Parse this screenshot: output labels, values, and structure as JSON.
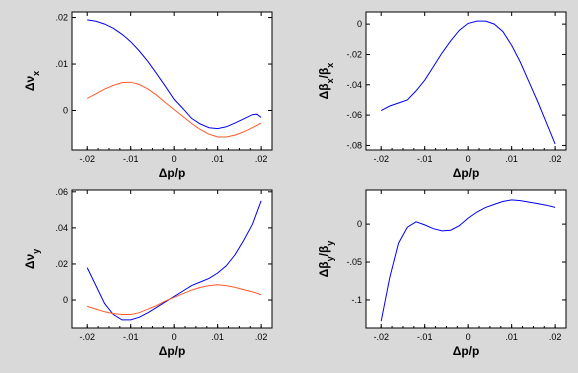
{
  "chart_data": [
    {
      "id": "tl",
      "type": "line",
      "xlabel": "Δp/p",
      "ylabel": "Δν_x",
      "xlim": [
        -0.0235,
        0.0225
      ],
      "ylim": [
        -0.0085,
        0.0212
      ],
      "xticks": [
        -0.02,
        -0.01,
        0,
        0.01,
        0.02
      ],
      "xtick_labels": [
        "-.02",
        "-.01",
        "0",
        ".01",
        ".02"
      ],
      "yticks": [
        0,
        0.01,
        0.02
      ],
      "ytick_labels": [
        "0",
        ".01",
        ".02"
      ],
      "series": [
        {
          "color": "#0000ee",
          "x": [
            -0.02,
            -0.018,
            -0.016,
            -0.014,
            -0.012,
            -0.01,
            -0.008,
            -0.006,
            -0.004,
            -0.002,
            0,
            0.002,
            0.004,
            0.006,
            0.008,
            0.01,
            0.012,
            0.014,
            0.016,
            0.018,
            0.019,
            0.02
          ],
          "y": [
            0.0195,
            0.0192,
            0.0186,
            0.0177,
            0.0164,
            0.0148,
            0.0128,
            0.0105,
            0.0079,
            0.0052,
            0.0024,
            0.0004,
            -0.0017,
            -0.0029,
            -0.0037,
            -0.0039,
            -0.0035,
            -0.0027,
            -0.0018,
            -0.0009,
            -0.0008,
            -0.0015
          ]
        },
        {
          "color": "#ff5a2a",
          "x": [
            -0.02,
            -0.018,
            -0.016,
            -0.014,
            -0.012,
            -0.01,
            -0.008,
            -0.006,
            -0.004,
            -0.002,
            0,
            0.002,
            0.004,
            0.006,
            0.008,
            0.01,
            0.012,
            0.014,
            0.016,
            0.018,
            0.02
          ],
          "y": [
            0.0026,
            0.0036,
            0.0046,
            0.0054,
            0.006,
            0.0061,
            0.0056,
            0.0046,
            0.0033,
            0.0017,
            0.0002,
            -0.0013,
            -0.0028,
            -0.0041,
            -0.0051,
            -0.0057,
            -0.0057,
            -0.0053,
            -0.0046,
            -0.0037,
            -0.0027
          ]
        }
      ]
    },
    {
      "id": "tr",
      "type": "line",
      "xlabel": "Δp/p",
      "ylabel": "Δβ_x/β_x",
      "xlim": [
        -0.0235,
        0.0225
      ],
      "ylim": [
        -0.083,
        0.008
      ],
      "xticks": [
        -0.02,
        -0.01,
        0,
        0.01,
        0.02
      ],
      "xtick_labels": [
        "-.02",
        "-.01",
        "0",
        ".01",
        ".02"
      ],
      "yticks": [
        0,
        -0.02,
        -0.04,
        -0.06,
        -0.08
      ],
      "ytick_labels": [
        "0",
        "-.02",
        "-.04",
        "-.06",
        "-.08"
      ],
      "series": [
        {
          "color": "#0000ee",
          "x": [
            -0.02,
            -0.018,
            -0.016,
            -0.014,
            -0.012,
            -0.01,
            -0.008,
            -0.006,
            -0.004,
            -0.002,
            0,
            0.002,
            0.004,
            0.006,
            0.008,
            0.01,
            0.012,
            0.014,
            0.016,
            0.018,
            0.02
          ],
          "y": [
            -0.057,
            -0.054,
            -0.052,
            -0.05,
            -0.044,
            -0.037,
            -0.028,
            -0.019,
            -0.011,
            -0.004,
            0.0005,
            0.002,
            0.002,
            0,
            -0.005,
            -0.014,
            -0.025,
            -0.038,
            -0.051,
            -0.065,
            -0.079
          ]
        }
      ]
    },
    {
      "id": "bl",
      "type": "line",
      "xlabel": "Δp/p",
      "ylabel": "Δν_y",
      "xlim": [
        -0.0235,
        0.0225
      ],
      "ylim": [
        -0.0155,
        0.061
      ],
      "xticks": [
        -0.02,
        -0.01,
        0,
        0.01,
        0.02
      ],
      "xtick_labels": [
        "-.02",
        "-.01",
        "0",
        ".01",
        ".02"
      ],
      "yticks": [
        0,
        0.02,
        0.04,
        0.06
      ],
      "ytick_labels": [
        "0",
        ".02",
        ".04",
        ".06"
      ],
      "series": [
        {
          "color": "#0000ee",
          "x": [
            -0.02,
            -0.018,
            -0.016,
            -0.014,
            -0.012,
            -0.01,
            -0.008,
            -0.006,
            -0.004,
            -0.002,
            0,
            0.002,
            0.004,
            0.006,
            0.008,
            0.01,
            0.012,
            0.014,
            0.016,
            0.018,
            0.02
          ],
          "y": [
            0.018,
            0.008,
            -0.002,
            -0.008,
            -0.011,
            -0.011,
            -0.0095,
            -0.007,
            -0.004,
            -0.001,
            0.002,
            0.005,
            0.008,
            0.01,
            0.012,
            0.015,
            0.019,
            0.025,
            0.033,
            0.042,
            0.055
          ]
        },
        {
          "color": "#ff5a2a",
          "x": [
            -0.02,
            -0.018,
            -0.016,
            -0.014,
            -0.012,
            -0.01,
            -0.008,
            -0.006,
            -0.004,
            -0.002,
            0,
            0.002,
            0.004,
            0.006,
            0.008,
            0.01,
            0.012,
            0.014,
            0.016,
            0.018,
            0.02
          ],
          "y": [
            -0.0035,
            -0.005,
            -0.0065,
            -0.0075,
            -0.008,
            -0.008,
            -0.007,
            -0.005,
            -0.003,
            -0.0005,
            0.0015,
            0.0035,
            0.0055,
            0.007,
            0.008,
            0.0085,
            0.008,
            0.007,
            0.0058,
            0.0045,
            0.003
          ]
        }
      ]
    },
    {
      "id": "br",
      "type": "line",
      "xlabel": "Δp/p",
      "ylabel": "Δβ_y/β_y",
      "xlim": [
        -0.0235,
        0.0225
      ],
      "ylim": [
        -0.137,
        0.045
      ],
      "xticks": [
        -0.02,
        -0.01,
        0,
        0.01,
        0.02
      ],
      "xtick_labels": [
        "-.02",
        "-.01",
        "0",
        ".01",
        ".02"
      ],
      "yticks": [
        0,
        -0.05,
        -0.1
      ],
      "ytick_labels": [
        "0",
        "-.05",
        "-.1"
      ],
      "series": [
        {
          "color": "#0000ee",
          "x": [
            -0.02,
            -0.018,
            -0.016,
            -0.014,
            -0.012,
            -0.01,
            -0.008,
            -0.006,
            -0.004,
            -0.002,
            0,
            0.002,
            0.004,
            0.006,
            0.008,
            0.01,
            0.012,
            0.014,
            0.016,
            0.018,
            0.02
          ],
          "y": [
            -0.128,
            -0.07,
            -0.025,
            -0.004,
            0.003,
            -0.001,
            -0.006,
            -0.009,
            -0.008,
            -0.002,
            0.008,
            0.016,
            0.022,
            0.026,
            0.03,
            0.032,
            0.031,
            0.029,
            0.027,
            0.025,
            0.022
          ]
        }
      ]
    }
  ]
}
